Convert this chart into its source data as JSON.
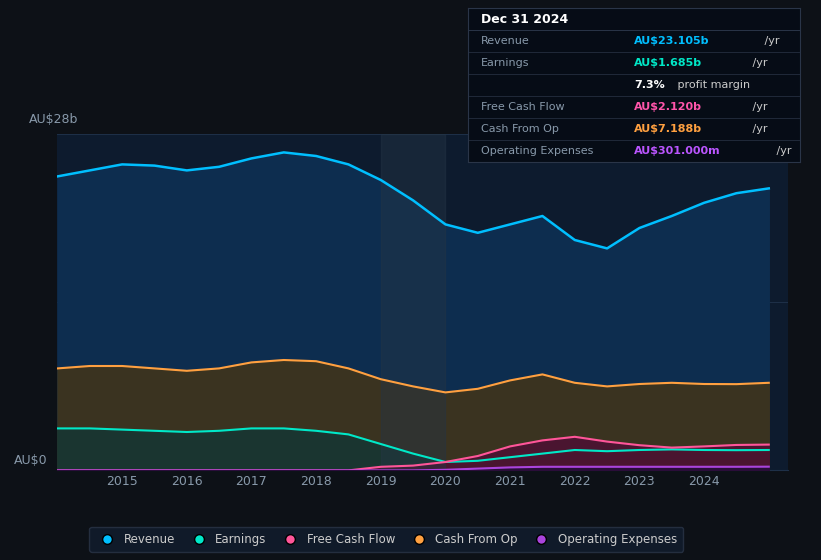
{
  "background_color": "#0d1117",
  "plot_bg_color": "#0d1b2e",
  "years": [
    2014.0,
    2014.5,
    2015.0,
    2015.5,
    2016.0,
    2016.5,
    2017.0,
    2017.5,
    2018.0,
    2018.5,
    2019.0,
    2019.5,
    2020.0,
    2020.5,
    2021.0,
    2021.5,
    2022.0,
    2022.5,
    2023.0,
    2023.5,
    2024.0,
    2024.5,
    2025.0
  ],
  "revenue": [
    24.5,
    25.0,
    25.5,
    25.4,
    25.0,
    25.3,
    26.0,
    26.5,
    26.2,
    25.5,
    24.2,
    22.5,
    20.5,
    19.8,
    20.5,
    21.2,
    19.2,
    18.5,
    20.2,
    21.2,
    22.3,
    23.1,
    23.5
  ],
  "cash_from_op": [
    8.5,
    8.7,
    8.7,
    8.5,
    8.3,
    8.5,
    9.0,
    9.2,
    9.1,
    8.5,
    7.6,
    7.0,
    6.5,
    6.8,
    7.5,
    8.0,
    7.3,
    7.0,
    7.2,
    7.3,
    7.2,
    7.188,
    7.3
  ],
  "earnings": [
    3.5,
    3.5,
    3.4,
    3.3,
    3.2,
    3.3,
    3.5,
    3.5,
    3.3,
    3.0,
    2.2,
    1.4,
    0.7,
    0.8,
    1.1,
    1.4,
    1.7,
    1.6,
    1.7,
    1.75,
    1.7,
    1.685,
    1.7
  ],
  "free_cash_flow": [
    0.0,
    0.0,
    0.0,
    0.0,
    0.0,
    0.0,
    0.0,
    0.0,
    0.0,
    0.0,
    0.3,
    0.4,
    0.7,
    1.2,
    2.0,
    2.5,
    2.8,
    2.4,
    2.1,
    1.9,
    2.0,
    2.12,
    2.15
  ],
  "op_expenses": [
    0.0,
    0.0,
    0.0,
    0.0,
    0.0,
    0.0,
    0.0,
    0.0,
    0.0,
    0.0,
    0.0,
    0.0,
    0.05,
    0.15,
    0.25,
    0.3,
    0.3,
    0.3,
    0.3,
    0.3,
    0.3,
    0.301,
    0.31
  ],
  "revenue_line_color": "#00bfff",
  "cash_from_op_line_color": "#ffa040",
  "earnings_line_color": "#00e8c8",
  "free_cash_flow_line_color": "#ff5599",
  "op_expenses_line_color": "#aa44dd",
  "revenue_fill_color": "#0d2d4f",
  "cash_from_op_fill_color": "#3a3320",
  "earnings_fill_color": "#1a3530",
  "free_cash_flow_fill_color": "#4a1530",
  "op_expenses_fill_color": "#2a0d3a",
  "highlight_x_start": 2019.0,
  "highlight_x_end": 2020.0,
  "highlight_color": "#253545",
  "grid_color": "#1e3048",
  "axis_label_color": "#8899aa",
  "ylim": [
    0,
    28
  ],
  "xlim": [
    2014.0,
    2025.3
  ],
  "xticks": [
    2015,
    2016,
    2017,
    2018,
    2019,
    2020,
    2021,
    2022,
    2023,
    2024
  ],
  "ytop_label": "AU$28b",
  "ybottom_label": "AU$0",
  "tooltip_title": "Dec 31 2024",
  "tooltip_rows": [
    {
      "label": "Revenue",
      "value": "AU$23.105b",
      "suffix": " /yr",
      "color": "#00bfff",
      "separator_after": false
    },
    {
      "label": "Earnings",
      "value": "AU$1.685b",
      "suffix": " /yr",
      "color": "#00e8c8",
      "separator_after": false
    },
    {
      "label": "",
      "value": "7.3%",
      "suffix": " profit margin",
      "color": "#ffffff",
      "separator_after": true
    },
    {
      "label": "Free Cash Flow",
      "value": "AU$2.120b",
      "suffix": " /yr",
      "color": "#ff55aa",
      "separator_after": false
    },
    {
      "label": "Cash From Op",
      "value": "AU$7.188b",
      "suffix": " /yr",
      "color": "#ffa040",
      "separator_after": false
    },
    {
      "label": "Operating Expenses",
      "value": "AU$301.000m",
      "suffix": " /yr",
      "color": "#bb55ff",
      "separator_after": false
    }
  ],
  "legend_labels": [
    "Revenue",
    "Earnings",
    "Free Cash Flow",
    "Cash From Op",
    "Operating Expenses"
  ],
  "legend_colors": [
    "#00bfff",
    "#00e8c8",
    "#ff5599",
    "#ffa040",
    "#aa44dd"
  ]
}
